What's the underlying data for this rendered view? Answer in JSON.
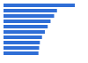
{
  "chart_data": {
    "type": "bar",
    "orientation": "horizontal",
    "categories": [
      null,
      null,
      null,
      null,
      null,
      null,
      null,
      null,
      null,
      null
    ],
    "values": [
      100,
      75,
      71,
      66,
      62,
      58,
      54,
      51,
      50,
      49
    ],
    "color": "#2f6ed6",
    "xlim": [
      0,
      100
    ],
    "grid": false,
    "tick_labels": false
  }
}
